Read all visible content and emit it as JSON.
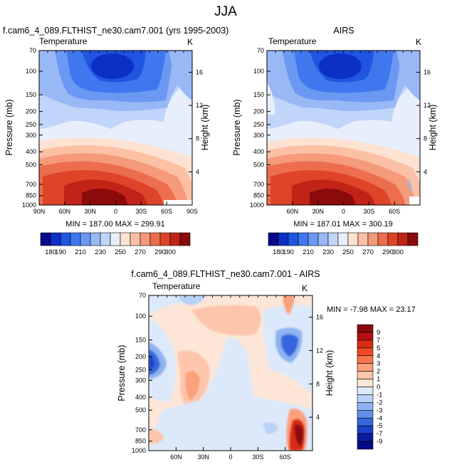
{
  "page_title": "JJA",
  "colors": {
    "frame": "#000000",
    "background": "#ffffff"
  },
  "chart_data": [
    {
      "type": "heatmap",
      "id": "model",
      "title": "f.cam6_4_089.FLTHIST_ne30.cam7.001 (yrs 1995-2003)",
      "field_label": "Temperature",
      "units_label": "K",
      "ylabel": "Pressure (mb)",
      "y2label": "Height (km)",
      "xlabel": "",
      "x_ticks": [
        "90N",
        "60N",
        "30N",
        "0",
        "30S",
        "60S",
        "90S"
      ],
      "y_ticks": [
        "70",
        "100",
        "150",
        "200",
        "250",
        "300",
        "400",
        "500",
        "700",
        "850",
        "1000"
      ],
      "y2_ticks": [
        "16",
        "12",
        "8",
        "4"
      ],
      "ylim": [
        1000,
        70
      ],
      "xlim": [
        90,
        -90
      ],
      "stats": "MIN = 187.00   MAX = 299.91",
      "min": 187.0,
      "max": 299.91
    },
    {
      "type": "heatmap",
      "id": "obs",
      "title": "AIRS",
      "field_label": "Temperature",
      "units_label": "K",
      "ylabel": "Pressure (mb)",
      "y2label": "Height (km)",
      "xlabel": "",
      "x_ticks": [
        "60N",
        "30N",
        "0",
        "30S",
        "60S"
      ],
      "y_ticks": [
        "70",
        "100",
        "150",
        "200",
        "250",
        "300",
        "400",
        "500",
        "700",
        "850",
        "1000"
      ],
      "y2_ticks": [
        "16",
        "12",
        "8",
        "4"
      ],
      "ylim": [
        1000,
        70
      ],
      "xlim": [
        90,
        -90
      ],
      "stats": "MIN = 187.01   MAX = 300.19",
      "min": 187.01,
      "max": 300.19
    },
    {
      "type": "heatmap",
      "id": "diff",
      "title": "f.cam6_4_089.FLTHIST_ne30.cam7.001 - AIRS",
      "field_label": "Temperature",
      "units_label": "K",
      "ylabel": "Pressure (mb)",
      "y2label": "Height (km)",
      "xlabel": "",
      "x_ticks": [
        "60N",
        "30N",
        "0",
        "30S",
        "60S"
      ],
      "y_ticks": [
        "70",
        "100",
        "150",
        "200",
        "250",
        "300",
        "400",
        "500",
        "700",
        "850",
        "1000"
      ],
      "y2_ticks": [
        "16",
        "12",
        "8",
        "4"
      ],
      "ylim": [
        1000,
        70
      ],
      "xlim": [
        90,
        -90
      ],
      "stats": "MIN = -7.98   MAX = 23.17",
      "min": -7.98,
      "max": 23.17
    }
  ],
  "temp_colorbar": {
    "labels": [
      "180",
      "190",
      "210",
      "230",
      "250",
      "270",
      "290",
      "300"
    ],
    "levels": [
      180,
      190,
      200,
      210,
      220,
      230,
      240,
      250,
      260,
      270,
      280,
      290,
      300
    ],
    "colors": [
      "#08088a",
      "#0c2fc6",
      "#1f55e0",
      "#3f78ee",
      "#6b98f2",
      "#98b8f6",
      "#c1d5fa",
      "#e8eefb",
      "#fde2d2",
      "#fcc0a4",
      "#f59a7b",
      "#ec6e4e",
      "#de4428",
      "#c12417",
      "#8b0a0a"
    ]
  },
  "diff_colorbar": {
    "labels": [
      "9",
      "7",
      "5",
      "4",
      "3",
      "2",
      "1",
      "0",
      "-1",
      "-2",
      "-3",
      "-4",
      "-5",
      "-7",
      "-9"
    ],
    "colors": [
      "#8b0a0a",
      "#b31010",
      "#d92c14",
      "#ee4a24",
      "#f6774d",
      "#fba07c",
      "#fdc6ac",
      "#fde6d7",
      "#dce9fa",
      "#b9d1f6",
      "#8fb3f0",
      "#6290e8",
      "#3566dd",
      "#1a3fc8",
      "#0a1c9c",
      "#08088a"
    ]
  }
}
